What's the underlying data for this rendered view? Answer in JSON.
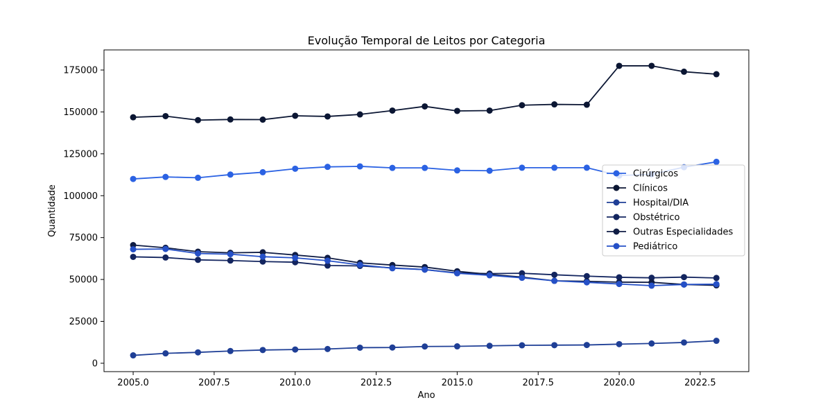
{
  "chart_data": {
    "type": "line",
    "title": "Evolução Temporal de Leitos por Categoria",
    "xlabel": "Ano",
    "ylabel": "Quantidade",
    "xlim": [
      2004.1,
      2024.0
    ],
    "ylim": [
      -5000,
      187000
    ],
    "x_ticks": [
      2005.0,
      2007.5,
      2010.0,
      2012.5,
      2015.0,
      2017.5,
      2020.0,
      2022.5
    ],
    "x_tick_labels": [
      "2005.0",
      "2007.5",
      "2010.0",
      "2012.5",
      "2015.0",
      "2017.5",
      "2020.0",
      "2022.5"
    ],
    "y_ticks": [
      0,
      25000,
      50000,
      75000,
      100000,
      125000,
      150000,
      175000
    ],
    "y_tick_labels": [
      "0",
      "25000",
      "50000",
      "75000",
      "100000",
      "125000",
      "150000",
      "175000"
    ],
    "grid": false,
    "legend_position": "center-right",
    "x": [
      2005,
      2006,
      2007,
      2008,
      2009,
      2010,
      2011,
      2012,
      2013,
      2014,
      2015,
      2016,
      2017,
      2018,
      2019,
      2020,
      2021,
      2022,
      2023
    ],
    "series": [
      {
        "name": "Cirúrgicos",
        "color": "#2b62e3",
        "values": [
          110000,
          111200,
          110700,
          112600,
          114000,
          116100,
          117200,
          117500,
          116600,
          116600,
          115100,
          114900,
          116700,
          116700,
          116700,
          112000,
          112800,
          117000,
          120200
        ]
      },
      {
        "name": "Clínicos",
        "color": "#0b1633",
        "values": [
          146800,
          147500,
          145100,
          145500,
          145400,
          147700,
          147300,
          148500,
          150800,
          153300,
          150600,
          150800,
          154000,
          154500,
          154300,
          177500,
          177500,
          174000,
          172500
        ]
      },
      {
        "name": "Hospital/DIA",
        "color": "#1f3f96",
        "values": [
          4700,
          5900,
          6500,
          7300,
          7900,
          8200,
          8500,
          9300,
          9400,
          10000,
          10100,
          10400,
          10700,
          10800,
          10900,
          11400,
          11800,
          12400,
          13400
        ]
      },
      {
        "name": "Obstétrico",
        "color": "#13255f",
        "values": [
          63500,
          63100,
          61700,
          61300,
          60700,
          60300,
          58300,
          58100,
          56900,
          55900,
          53900,
          53500,
          53700,
          52800,
          52000,
          51300,
          51000,
          51400,
          50900
        ]
      },
      {
        "name": "Outras Especialidades",
        "color": "#101d45",
        "values": [
          70500,
          68900,
          66600,
          65900,
          66200,
          64600,
          62900,
          59900,
          58600,
          57400,
          54900,
          53000,
          51400,
          49200,
          48900,
          48400,
          48300,
          47000,
          46500
        ]
      },
      {
        "name": "Pediátrico",
        "color": "#2550c7",
        "values": [
          68000,
          68200,
          65500,
          65100,
          63600,
          62900,
          61200,
          58700,
          56700,
          55900,
          53700,
          52500,
          51000,
          49200,
          48300,
          47300,
          46300,
          47000,
          47200
        ]
      }
    ]
  }
}
